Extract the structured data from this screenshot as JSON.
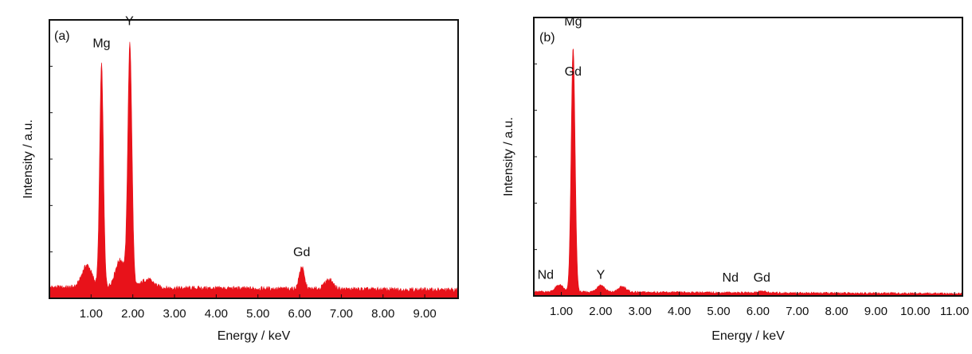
{
  "colors": {
    "fill": "#e8121a",
    "frame": "#111111"
  },
  "chart_data": [
    {
      "type": "area",
      "panel_label": "(a)",
      "xlabel": "Energy / keV",
      "ylabel": "Intensity / a.u.",
      "xlim": [
        0.0,
        9.8
      ],
      "ylim": [
        0,
        100
      ],
      "xticks": [
        1,
        2,
        3,
        4,
        5,
        6,
        7,
        8,
        9
      ],
      "xtick_labels": [
        "1.00",
        "2.00",
        "3.00",
        "4.00",
        "5.00",
        "6.00",
        "7.00",
        "8.00",
        "9.00"
      ],
      "annotations": [
        {
          "text": "Mg",
          "x": 1.25,
          "y": 89
        },
        {
          "text": "Y",
          "x": 1.92,
          "y": 97
        },
        {
          "text": "Gd",
          "x": 6.05,
          "y": 14
        }
      ],
      "baseline": 4,
      "baseline_end": 3,
      "peaks": [
        {
          "x": 0.9,
          "h": 8,
          "w": 0.12
        },
        {
          "x": 1.25,
          "h": 80,
          "w": 0.045
        },
        {
          "x": 1.7,
          "h": 10,
          "w": 0.12
        },
        {
          "x": 1.93,
          "h": 86,
          "w": 0.05
        },
        {
          "x": 2.35,
          "h": 3,
          "w": 0.15
        },
        {
          "x": 6.05,
          "h": 8,
          "w": 0.06
        },
        {
          "x": 6.7,
          "h": 3.5,
          "w": 0.1
        }
      ]
    },
    {
      "type": "area",
      "panel_label": "(b)",
      "xlabel": "Energy / keV",
      "ylabel": "Intensity / a.u.",
      "xlim": [
        0.3,
        11.2
      ],
      "ylim": [
        0,
        100
      ],
      "xticks": [
        1,
        2,
        3,
        4,
        5,
        6,
        7,
        8,
        9,
        10,
        11
      ],
      "xtick_labels": [
        "1.00",
        "2.00",
        "3.00",
        "4.00",
        "5.00",
        "6.00",
        "7.00",
        "8.00",
        "9.00",
        "10.00",
        "11.00"
      ],
      "annotations": [
        {
          "text": "Mg",
          "x": 1.3,
          "y": 96
        },
        {
          "text": "Gd",
          "x": 1.3,
          "y": 78
        },
        {
          "text": "Nd",
          "x": 0.6,
          "y": 5
        },
        {
          "text": "Y",
          "x": 2.0,
          "y": 5
        },
        {
          "text": "Nd",
          "x": 5.3,
          "y": 4
        },
        {
          "text": "Gd",
          "x": 6.1,
          "y": 4
        }
      ],
      "baseline": 1.5,
      "baseline_end": 0.8,
      "peaks": [
        {
          "x": 0.95,
          "h": 2.5,
          "w": 0.1
        },
        {
          "x": 1.3,
          "h": 88,
          "w": 0.05
        },
        {
          "x": 2.0,
          "h": 2.5,
          "w": 0.1
        },
        {
          "x": 2.55,
          "h": 2,
          "w": 0.1
        },
        {
          "x": 6.1,
          "h": 0.6,
          "w": 0.1
        }
      ]
    }
  ]
}
